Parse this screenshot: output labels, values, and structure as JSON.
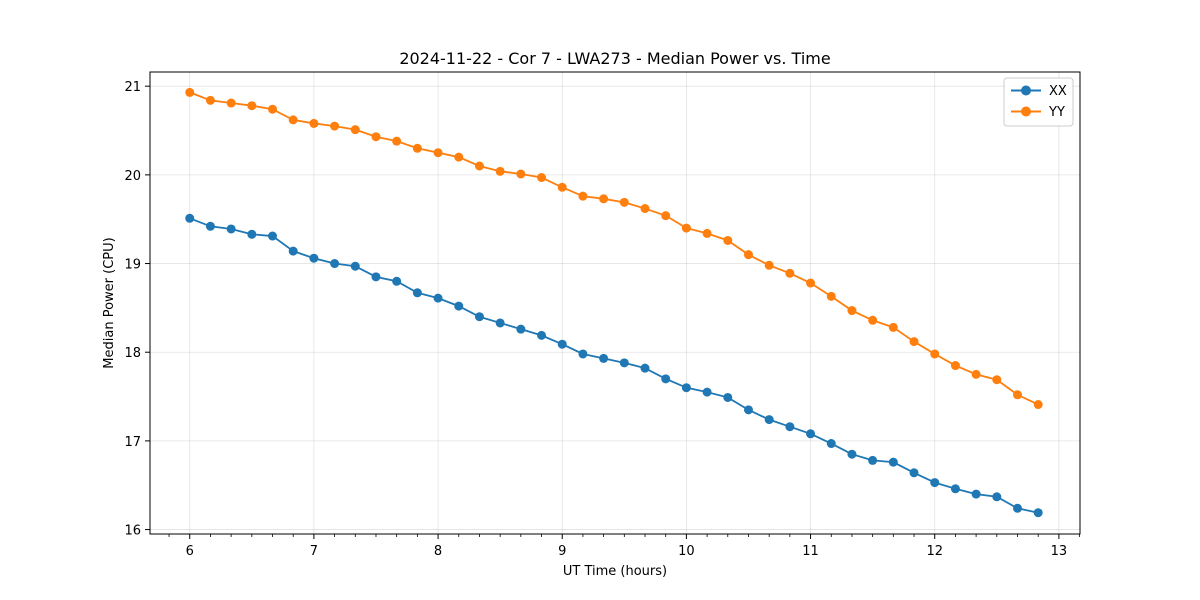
{
  "chart_data": {
    "type": "line",
    "title": "2024-11-22 - Cor 7 - LWA273 - Median Power vs. Time",
    "xlabel": "UT Time (hours)",
    "ylabel": "Median Power (CPU)",
    "xlim": [
      5.68,
      13.17
    ],
    "ylim": [
      15.95,
      21.16
    ],
    "xticks": [
      6,
      7,
      8,
      9,
      10,
      11,
      12,
      13
    ],
    "yticks": [
      16,
      17,
      18,
      19,
      20,
      21
    ],
    "xtick_labels": [
      "6",
      "7",
      "8",
      "9",
      "10",
      "11",
      "12",
      "13"
    ],
    "ytick_labels": [
      "16",
      "17",
      "18",
      "19",
      "20",
      "21"
    ],
    "grid": true,
    "legend_position": "top-right",
    "x": [
      6.0,
      6.1667,
      6.3333,
      6.5,
      6.6667,
      6.8333,
      7.0,
      7.1667,
      7.3333,
      7.5,
      7.6667,
      7.8333,
      8.0,
      8.1667,
      8.3333,
      8.5,
      8.6667,
      8.8333,
      9.0,
      9.1667,
      9.3333,
      9.5,
      9.6667,
      9.8333,
      10.0,
      10.1667,
      10.3333,
      10.5,
      10.6667,
      10.8333,
      11.0,
      11.1667,
      11.3333,
      11.5,
      11.6667,
      11.8333,
      12.0,
      12.1667,
      12.3333,
      12.5,
      12.6667,
      12.8333
    ],
    "series": [
      {
        "name": "XX",
        "color": "#1f77b4",
        "values": [
          19.51,
          19.42,
          19.39,
          19.33,
          19.31,
          19.14,
          19.06,
          19.0,
          18.97,
          18.85,
          18.8,
          18.67,
          18.61,
          18.52,
          18.4,
          18.33,
          18.26,
          18.19,
          18.09,
          17.98,
          17.93,
          17.88,
          17.82,
          17.7,
          17.6,
          17.55,
          17.49,
          17.35,
          17.24,
          17.16,
          17.08,
          16.97,
          16.85,
          16.78,
          16.76,
          16.64,
          16.53,
          16.46,
          16.4,
          16.37,
          16.24,
          16.19
        ]
      },
      {
        "name": "YY",
        "color": "#ff7f0e",
        "values": [
          20.93,
          20.84,
          20.81,
          20.78,
          20.74,
          20.62,
          20.58,
          20.55,
          20.51,
          20.43,
          20.38,
          20.3,
          20.25,
          20.2,
          20.1,
          20.04,
          20.01,
          19.97,
          19.86,
          19.76,
          19.73,
          19.69,
          19.62,
          19.54,
          19.4,
          19.34,
          19.26,
          19.1,
          18.98,
          18.89,
          18.78,
          18.63,
          18.47,
          18.36,
          18.28,
          18.12,
          17.98,
          17.85,
          17.75,
          17.69,
          17.52,
          17.41
        ]
      }
    ]
  }
}
